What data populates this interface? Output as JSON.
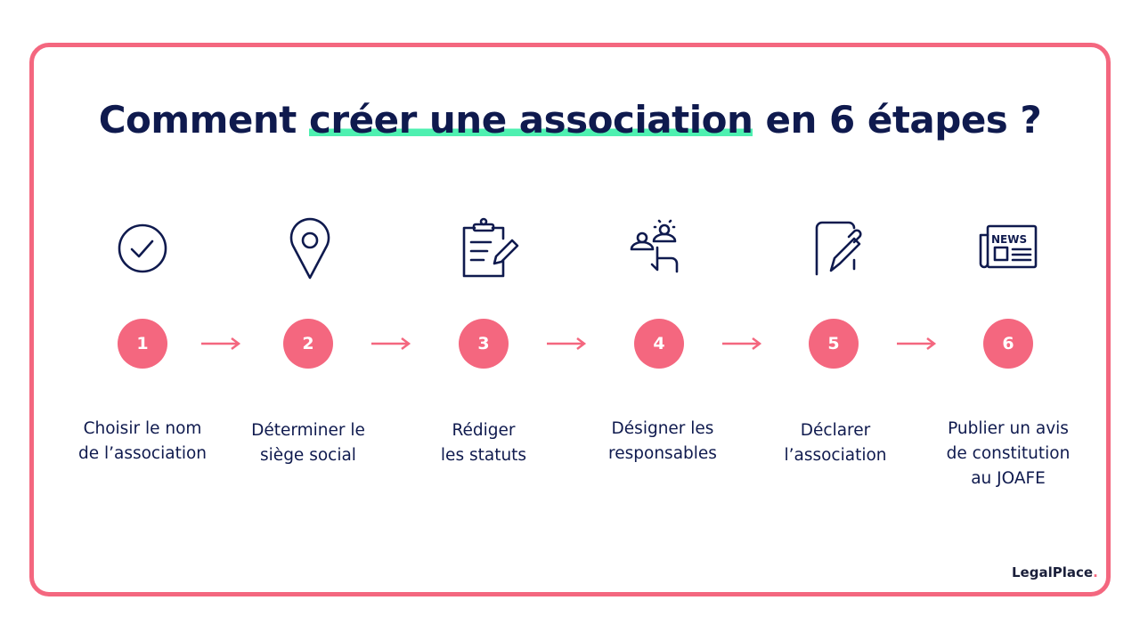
{
  "title": {
    "before": "Comment ",
    "highlight": "créer une association",
    "after": " en 6 étapes ?"
  },
  "steps": [
    {
      "number": "1",
      "label": "Choisir le nom\nde l’association",
      "icon": "check-circle-icon"
    },
    {
      "number": "2",
      "label": "Déterminer le\nsiège social",
      "icon": "location-pin-icon"
    },
    {
      "number": "3",
      "label": "Rédiger\nles statuts",
      "icon": "clipboard-pen-icon"
    },
    {
      "number": "4",
      "label": "Désigner les\nresponsables",
      "icon": "people-select-icon"
    },
    {
      "number": "5",
      "label": "Déclarer\nl’association",
      "icon": "pen-document-icon"
    },
    {
      "number": "6",
      "label": "Publier un avis\nde constitution\nau JOAFE",
      "icon": "newspaper-icon"
    }
  ],
  "newspaper_text": "NEWS",
  "logo": {
    "text": "LegalPlace",
    "dot": "."
  },
  "colors": {
    "accent": "#f4677f",
    "navy": "#0f1a4e",
    "highlight": "#4ef0b0"
  }
}
